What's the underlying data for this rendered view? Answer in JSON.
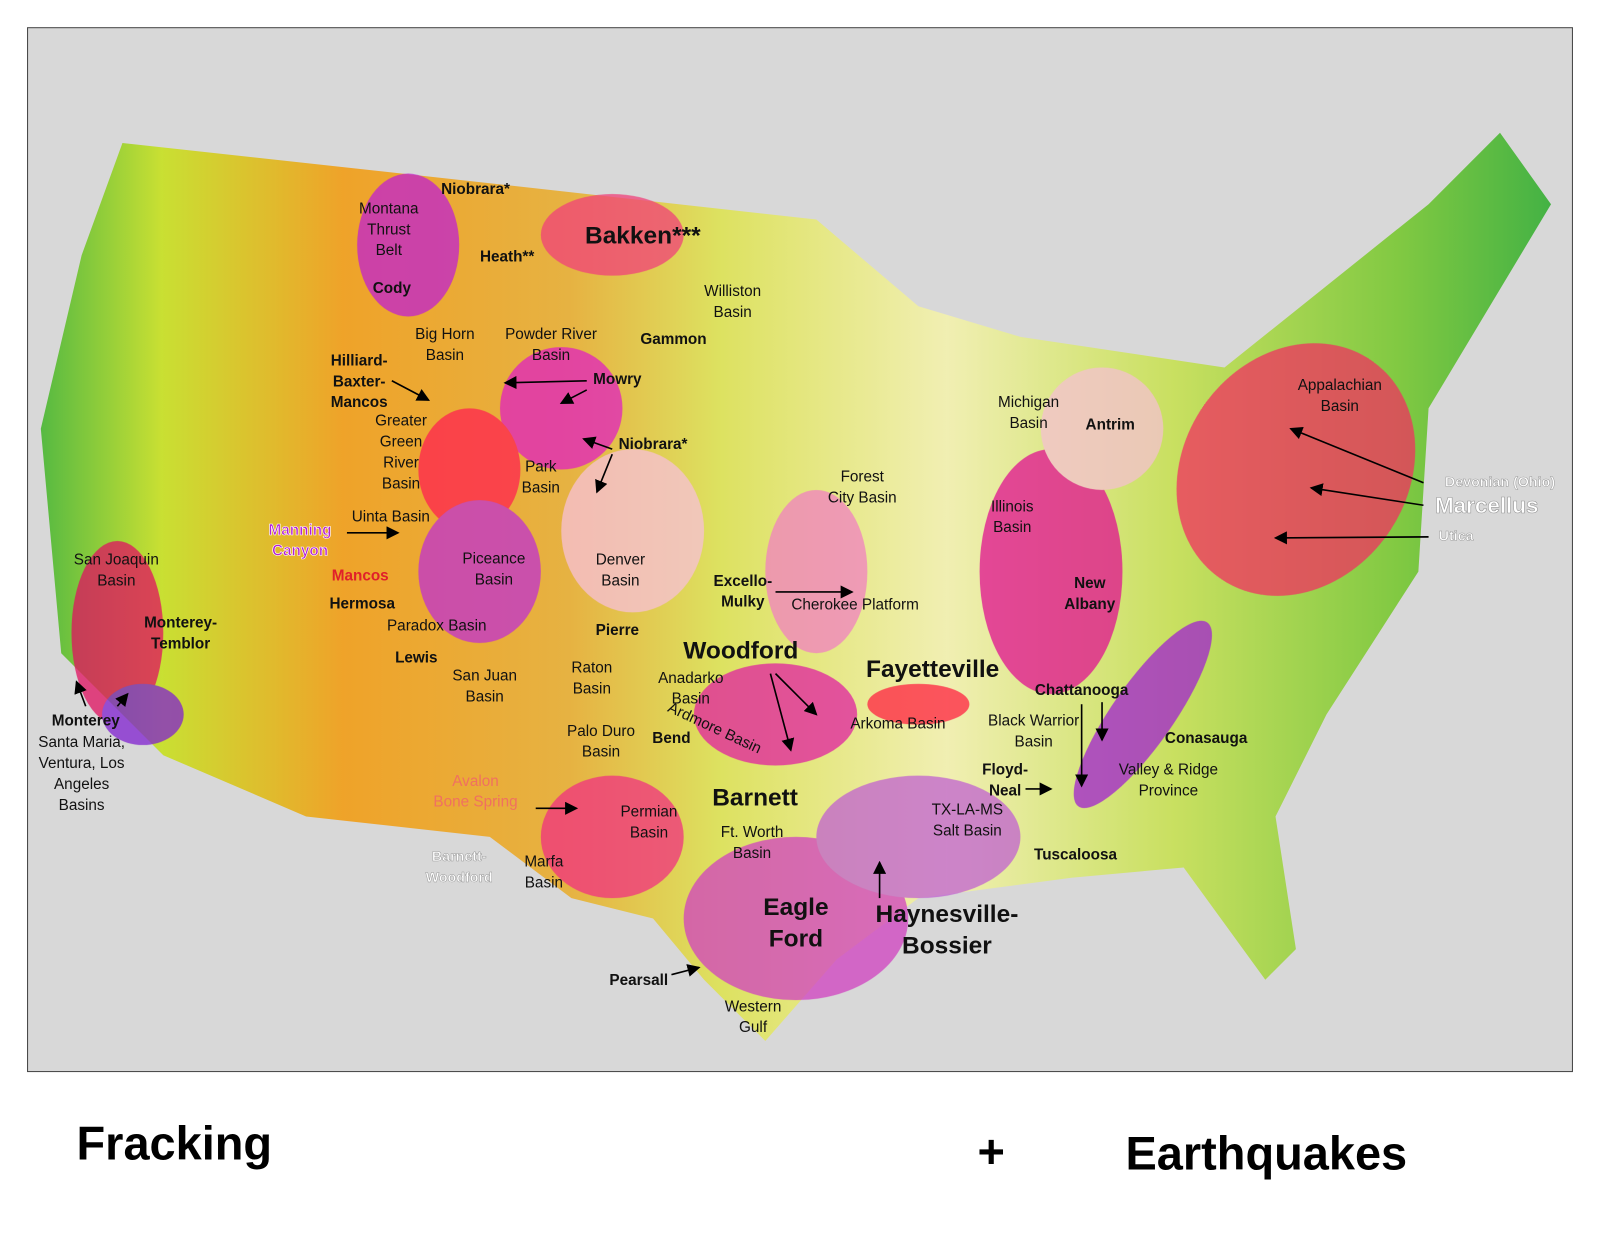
{
  "map": {
    "labels": [
      {
        "lines": [
          "Niobrara*"
        ]
      },
      {
        "lines": [
          "Montana",
          "Thrust",
          "Belt"
        ]
      },
      {
        "lines": [
          "Bakken***"
        ]
      },
      {
        "lines": [
          "Heath**"
        ]
      },
      {
        "lines": [
          "Cody"
        ]
      },
      {
        "lines": [
          "Williston",
          "Basin"
        ]
      },
      {
        "lines": [
          "Big Horn",
          "Basin"
        ]
      },
      {
        "lines": [
          "Powder River",
          "Basin"
        ]
      },
      {
        "lines": [
          "Gammon"
        ]
      },
      {
        "lines": [
          "Hilliard-",
          "Baxter-",
          "Mancos"
        ]
      },
      {
        "lines": [
          "Mowry"
        ]
      },
      {
        "lines": [
          "Greater",
          "Green",
          "River",
          "Basin"
        ]
      },
      {
        "lines": [
          "Niobrara*"
        ]
      },
      {
        "lines": [
          "Park",
          "Basin"
        ]
      },
      {
        "lines": [
          "Uinta Basin"
        ]
      },
      {
        "lines": [
          "Manning",
          "Canyon"
        ]
      },
      {
        "lines": [
          "San Joaquin",
          "Basin"
        ]
      },
      {
        "lines": [
          "Piceance",
          "Basin"
        ]
      },
      {
        "lines": [
          "Denver",
          "Basin"
        ]
      },
      {
        "lines": [
          "Mancos"
        ]
      },
      {
        "lines": [
          "Excello-",
          "Mulky"
        ]
      },
      {
        "lines": [
          "Hermosa"
        ]
      },
      {
        "lines": [
          "Cherokee Platform"
        ]
      },
      {
        "lines": [
          "Monterey-",
          "Temblor"
        ]
      },
      {
        "lines": [
          "Paradox Basin"
        ]
      },
      {
        "lines": [
          "Pierre"
        ]
      },
      {
        "lines": [
          "Woodford"
        ]
      },
      {
        "lines": [
          "Lewis"
        ]
      },
      {
        "lines": [
          "Fayetteville"
        ]
      },
      {
        "lines": [
          "Raton",
          "Basin"
        ]
      },
      {
        "lines": [
          "San Juan",
          "Basin"
        ]
      },
      {
        "lines": [
          "Anadarko",
          "Basin"
        ]
      },
      {
        "lines": [
          "Chattanooga"
        ]
      },
      {
        "lines": [
          "Monterey"
        ]
      },
      {
        "lines": [
          "Santa Maria,",
          "Ventura, Los",
          "Angeles",
          "Basins"
        ]
      },
      {
        "lines": [
          "Arkoma Basin"
        ]
      },
      {
        "lines": [
          "Black Warrior",
          "Basin"
        ]
      },
      {
        "lines": [
          "Ardmore Basin"
        ]
      },
      {
        "lines": [
          "Palo Duro",
          "Basin"
        ]
      },
      {
        "lines": [
          "Bend"
        ]
      },
      {
        "lines": [
          "Conasauga"
        ]
      },
      {
        "lines": [
          "Floyd-",
          "Neal"
        ]
      },
      {
        "lines": [
          "Valley & Ridge",
          "Province"
        ]
      },
      {
        "lines": [
          "Avalon",
          "Bone Spring"
        ]
      },
      {
        "lines": [
          "Barnett"
        ]
      },
      {
        "lines": [
          "TX-LA-MS",
          "Salt Basin"
        ]
      },
      {
        "lines": [
          "Permian",
          "Basin"
        ]
      },
      {
        "lines": [
          "Ft. Worth",
          "Basin"
        ]
      },
      {
        "lines": [
          "Barnett-",
          "Woodford"
        ]
      },
      {
        "lines": [
          "Marfa",
          "Basin"
        ]
      },
      {
        "lines": [
          "Tuscaloosa"
        ]
      },
      {
        "lines": [
          "Eagle",
          "Ford"
        ]
      },
      {
        "lines": [
          "Haynesville-",
          "Bossier"
        ]
      },
      {
        "lines": [
          "Pearsall"
        ]
      },
      {
        "lines": [
          "Western",
          "Gulf"
        ]
      },
      {
        "lines": [
          "Michigan",
          "Basin"
        ]
      },
      {
        "lines": [
          "Antrim"
        ]
      },
      {
        "lines": [
          "Forest",
          "City Basin"
        ]
      },
      {
        "lines": [
          "Illinois",
          "Basin"
        ]
      },
      {
        "lines": [
          "New",
          "Albany"
        ]
      },
      {
        "lines": [
          "Appalachian",
          "Basin"
        ]
      },
      {
        "lines": [
          "Devonian (Ohio)"
        ]
      },
      {
        "lines": [
          "Marcellus"
        ]
      },
      {
        "lines": [
          "Utica"
        ]
      }
    ]
  },
  "caption": {
    "left": "Fracking",
    "plus": "+",
    "right": "Earthquakes"
  }
}
